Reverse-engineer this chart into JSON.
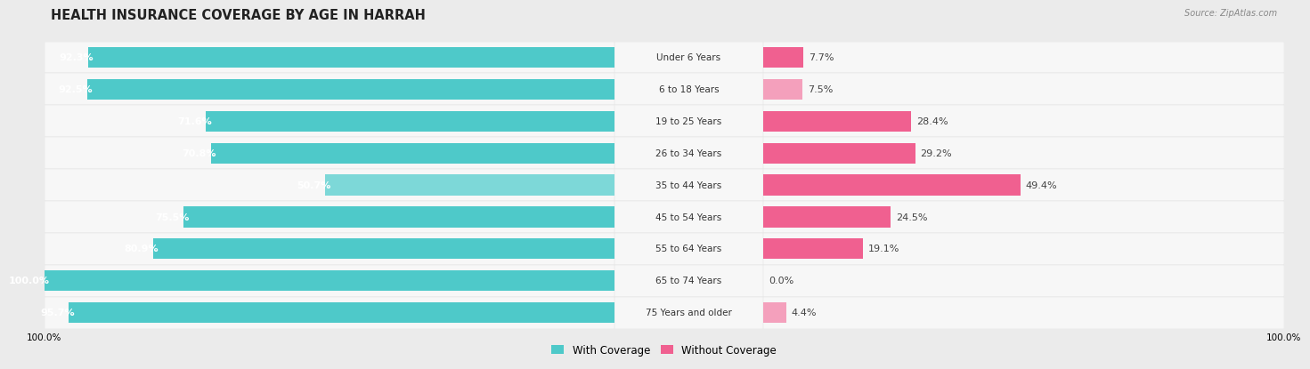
{
  "title": "HEALTH INSURANCE COVERAGE BY AGE IN HARRAH",
  "source": "Source: ZipAtlas.com",
  "categories": [
    "Under 6 Years",
    "6 to 18 Years",
    "19 to 25 Years",
    "26 to 34 Years",
    "35 to 44 Years",
    "45 to 54 Years",
    "55 to 64 Years",
    "65 to 74 Years",
    "75 Years and older"
  ],
  "with_coverage": [
    92.3,
    92.5,
    71.6,
    70.8,
    50.7,
    75.5,
    80.9,
    100.0,
    95.7
  ],
  "without_coverage": [
    7.7,
    7.5,
    28.4,
    29.2,
    49.4,
    24.5,
    19.1,
    0.0,
    4.4
  ],
  "color_with": "#4EC9C9",
  "color_with_light": "#7DD8D8",
  "color_without": "#F06090",
  "color_without_light": "#F4A0BC",
  "bg_color": "#EBEBEB",
  "row_bg_color": "#F7F7F7",
  "row_border_color": "#DDDDDD",
  "title_fontsize": 10.5,
  "label_fontsize": 8,
  "bar_height": 0.65,
  "legend_with": "With Coverage",
  "legend_without": "Without Coverage"
}
